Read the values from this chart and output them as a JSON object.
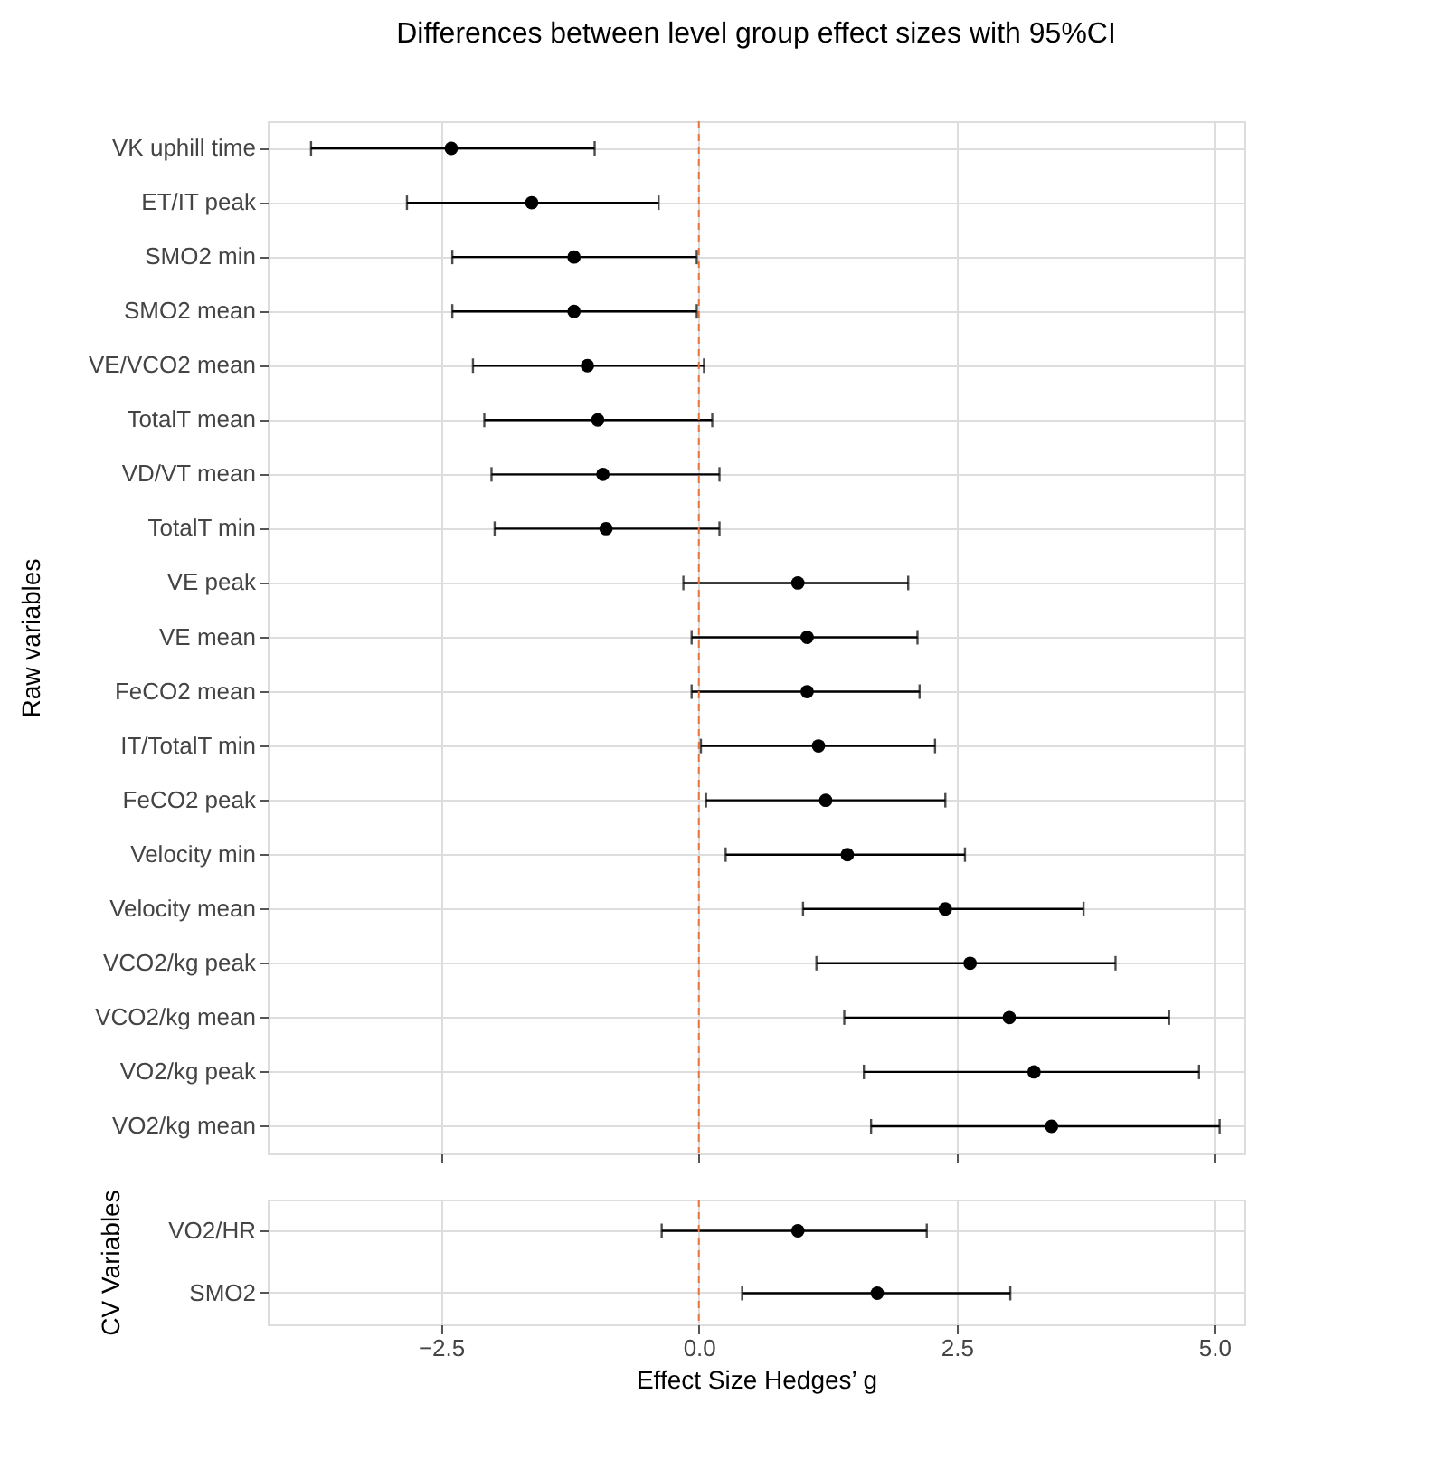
{
  "chart_data": [
    {
      "type": "scatter",
      "orientation": "horizontal",
      "title": "Differences between level group effect sizes with 95%CI",
      "ylabel": "Raw variables",
      "categories": [
        "VK uphill time",
        "ET/IT peak",
        "SMO2 min",
        "SMO2 mean",
        "VE/VCO2 mean",
        "TotalT mean",
        "VD/VT mean",
        "TotalT min",
        "VE peak",
        "VE mean",
        "FeCO2 mean",
        "IT/TotalT min",
        "FeCO2 peak",
        "Velocity min",
        "Velocity mean",
        "VCO2/kg peak",
        "VCO2/kg mean",
        "VO2/kg peak",
        "VO2/kg mean"
      ],
      "series": [
        {
          "color": "#000000",
          "values": [
            -2.4,
            -1.62,
            -1.21,
            -1.21,
            -1.08,
            -0.98,
            -0.93,
            -0.9,
            0.96,
            1.05,
            1.05,
            1.16,
            1.23,
            1.44,
            2.39,
            2.63,
            3.01,
            3.25,
            3.42
          ],
          "errors": [
            [
              -3.76,
              -1.01
            ],
            [
              -2.83,
              -0.39
            ],
            [
              -2.39,
              -0.02
            ],
            [
              -2.39,
              -0.02
            ],
            [
              -2.19,
              0.05
            ],
            [
              -2.08,
              0.13
            ],
            [
              -2.01,
              0.2
            ],
            [
              -1.98,
              0.2
            ],
            [
              -0.15,
              2.03
            ],
            [
              -0.07,
              2.12
            ],
            [
              -0.07,
              2.14
            ],
            [
              0.02,
              2.29
            ],
            [
              0.07,
              2.39
            ],
            [
              0.26,
              2.58
            ],
            [
              1.01,
              3.73
            ],
            [
              1.14,
              4.04
            ],
            [
              1.41,
              4.56
            ],
            [
              1.6,
              4.85
            ],
            [
              1.67,
              5.05
            ]
          ]
        }
      ],
      "xlim": [
        -4.18,
        5.29
      ],
      "xticks": [
        {
          "value": -2.5,
          "label": null
        },
        {
          "value": 0,
          "label": null
        },
        {
          "value": 2.5,
          "label": null
        },
        {
          "value": 5,
          "label": null
        }
      ],
      "ref_lines": [
        {
          "axis": "x",
          "value": 0,
          "color": "#e8743b",
          "line_style": "dashed"
        }
      ],
      "grid": true,
      "marker": "circle",
      "legend": false,
      "tick_labels": "y"
    },
    {
      "type": "scatter",
      "orientation": "horizontal",
      "ylabel": "CV Variables",
      "xlabel": "Effect Size Hedges’ g",
      "categories": [
        "VO2/HR",
        "SMO2"
      ],
      "series": [
        {
          "color": "#000000",
          "values": [
            0.96,
            1.73
          ],
          "errors": [
            [
              -0.36,
              2.21
            ],
            [
              0.42,
              3.02
            ]
          ]
        }
      ],
      "xlim": [
        -4.18,
        5.29
      ],
      "xticks": [
        {
          "value": -2.5,
          "label": "−2.5"
        },
        {
          "value": 0,
          "label": "0.0"
        },
        {
          "value": 2.5,
          "label": "2.5"
        },
        {
          "value": 5,
          "label": "5.0"
        }
      ],
      "ref_lines": [
        {
          "axis": "x",
          "value": 0,
          "color": "#e8743b",
          "line_style": "dashed"
        }
      ],
      "grid": true,
      "marker": "circle",
      "legend": false
    }
  ]
}
